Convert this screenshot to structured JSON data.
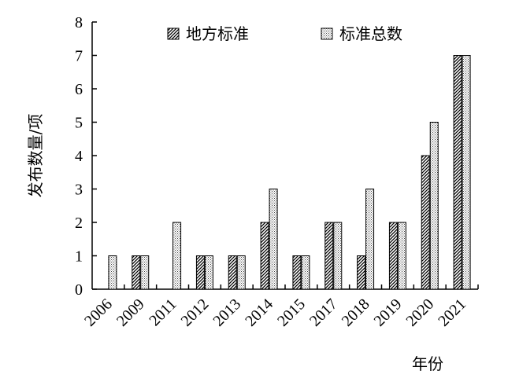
{
  "chart_data": {
    "type": "bar",
    "title": "",
    "xlabel": "年份",
    "ylabel": "发布数量/项",
    "ylim": [
      0,
      8
    ],
    "yticks": [
      0,
      1,
      2,
      3,
      4,
      5,
      6,
      7,
      8
    ],
    "categories": [
      "2006",
      "2009",
      "2011",
      "2012",
      "2013",
      "2014",
      "2015",
      "2017",
      "2018",
      "2019",
      "2020",
      "2021"
    ],
    "series": [
      {
        "name": "地方标准",
        "pattern": "diagonal-hatch",
        "color": "#000000",
        "values": [
          0,
          1,
          0,
          1,
          1,
          2,
          1,
          2,
          1,
          2,
          4,
          7
        ]
      },
      {
        "name": "标准总数",
        "pattern": "dotted",
        "color": "#000000",
        "values": [
          1,
          1,
          2,
          1,
          1,
          3,
          1,
          2,
          3,
          2,
          5,
          7
        ]
      }
    ],
    "grid": false,
    "legend_position": "top"
  }
}
